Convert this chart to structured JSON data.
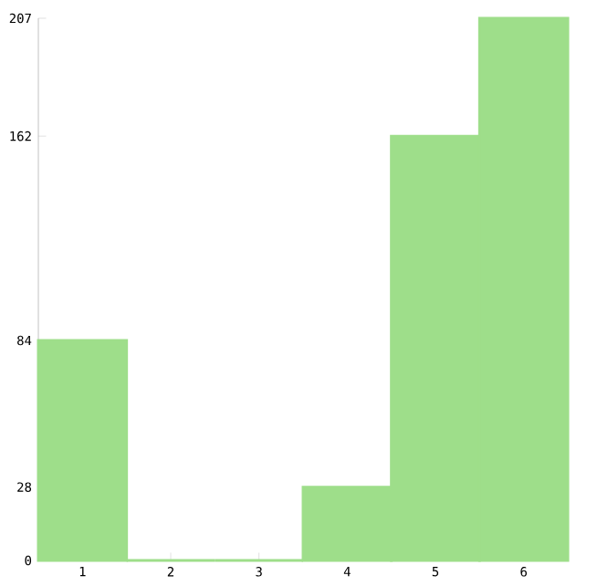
{
  "chart_data": {
    "type": "bar",
    "categories": [
      "1",
      "2",
      "3",
      "4",
      "5",
      "6"
    ],
    "values": [
      84,
      0,
      0,
      28,
      162,
      207
    ],
    "color": "#9ede8a",
    "ylim": [
      0,
      207
    ],
    "yticks": [
      0,
      28,
      84,
      162,
      207
    ],
    "grid": false
  }
}
